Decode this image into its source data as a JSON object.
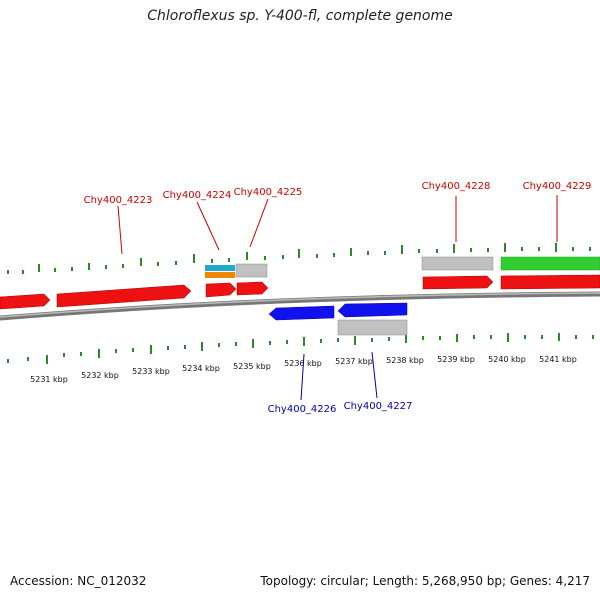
{
  "title": "Chloroflexus sp. Y-400-fl, complete genome",
  "footer": {
    "accession": "Accession: NC_012032",
    "summary": "Topology: circular; Length: 5,268,950 bp; Genes: 4,217"
  },
  "colors": {
    "forward_gene": "#ee1111",
    "reverse_gene": "#1111ee",
    "pseudo_gene": "#c0c0c0",
    "rrna": "#33cc33",
    "trna_a": "#22aacc",
    "trna_b": "#ee8800",
    "tick": "#2a8a2a",
    "backbone": "#777777",
    "forward_label": "#cc0000",
    "reverse_label": "#0000aa"
  },
  "ruler": {
    "ticks_kbp": [
      5231,
      5232,
      5233,
      5234,
      5235,
      5236,
      5237,
      5238,
      5239,
      5240,
      5241
    ],
    "unit": "kbp"
  },
  "genes": [
    {
      "label": "Chy400_4223",
      "strand": "forward"
    },
    {
      "label": "Chy400_4224",
      "strand": "forward"
    },
    {
      "label": "Chy400_4225",
      "strand": "forward"
    },
    {
      "label": "Chy400_4226",
      "strand": "reverse"
    },
    {
      "label": "Chy400_4227",
      "strand": "reverse"
    },
    {
      "label": "Chy400_4228",
      "strand": "forward"
    },
    {
      "label": "Chy400_4229",
      "strand": "forward"
    }
  ]
}
